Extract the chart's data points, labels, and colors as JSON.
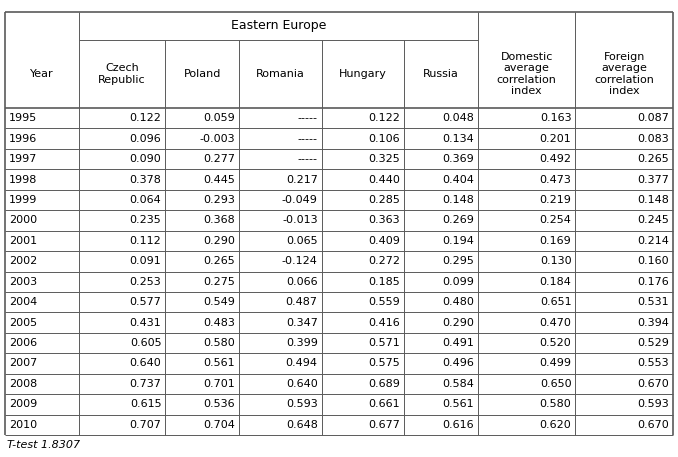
{
  "columns": [
    "Year",
    "Czech\nRepublic",
    "Poland",
    "Romania",
    "Hungary",
    "Russia",
    "Domestic\naverage\ncorrelation\nindex",
    "Foreign\naverage\ncorrelation\nindex"
  ],
  "data": [
    [
      "1995",
      "0.122",
      "0.059",
      "-----",
      "0.122",
      "0.048",
      "0.163",
      "0.087"
    ],
    [
      "1996",
      "0.096",
      "-0.003",
      "-----",
      "0.106",
      "0.134",
      "0.201",
      "0.083"
    ],
    [
      "1997",
      "0.090",
      "0.277",
      "-----",
      "0.325",
      "0.369",
      "0.492",
      "0.265"
    ],
    [
      "1998",
      "0.378",
      "0.445",
      "0.217",
      "0.440",
      "0.404",
      "0.473",
      "0.377"
    ],
    [
      "1999",
      "0.064",
      "0.293",
      "-0.049",
      "0.285",
      "0.148",
      "0.219",
      "0.148"
    ],
    [
      "2000",
      "0.235",
      "0.368",
      "-0.013",
      "0.363",
      "0.269",
      "0.254",
      "0.245"
    ],
    [
      "2001",
      "0.112",
      "0.290",
      "0.065",
      "0.409",
      "0.194",
      "0.169",
      "0.214"
    ],
    [
      "2002",
      "0.091",
      "0.265",
      "-0.124",
      "0.272",
      "0.295",
      "0.130",
      "0.160"
    ],
    [
      "2003",
      "0.253",
      "0.275",
      "0.066",
      "0.185",
      "0.099",
      "0.184",
      "0.176"
    ],
    [
      "2004",
      "0.577",
      "0.549",
      "0.487",
      "0.559",
      "0.480",
      "0.651",
      "0.531"
    ],
    [
      "2005",
      "0.431",
      "0.483",
      "0.347",
      "0.416",
      "0.290",
      "0.470",
      "0.394"
    ],
    [
      "2006",
      "0.605",
      "0.580",
      "0.399",
      "0.571",
      "0.491",
      "0.520",
      "0.529"
    ],
    [
      "2007",
      "0.640",
      "0.561",
      "0.494",
      "0.575",
      "0.496",
      "0.499",
      "0.553"
    ],
    [
      "2008",
      "0.737",
      "0.701",
      "0.640",
      "0.689",
      "0.584",
      "0.650",
      "0.670"
    ],
    [
      "2009",
      "0.615",
      "0.536",
      "0.593",
      "0.661",
      "0.561",
      "0.580",
      "0.593"
    ],
    [
      "2010",
      "0.707",
      "0.704",
      "0.648",
      "0.677",
      "0.616",
      "0.620",
      "0.670"
    ]
  ],
  "footnote": "T-test 1.8307",
  "background_color": "#ffffff",
  "line_color": "#5a5a5a",
  "text_color": "#000000"
}
